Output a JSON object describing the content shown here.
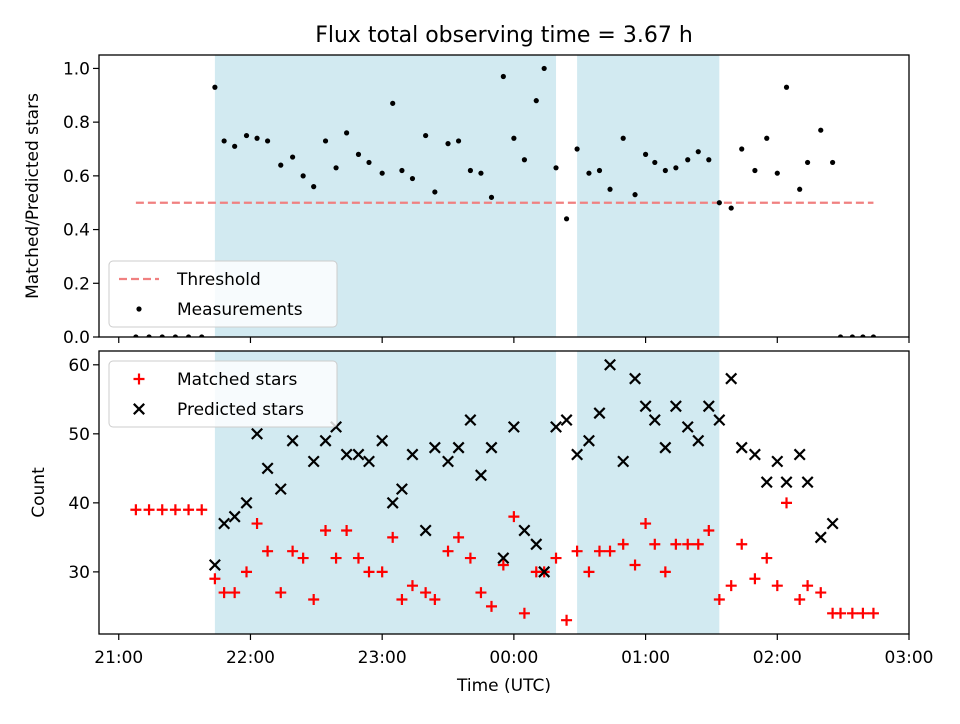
{
  "figure": {
    "title": "Flux total observing time = 3.67 h",
    "xlabel": "Time (UTC)",
    "xticks": [
      "21:00",
      "22:00",
      "23:00",
      "00:00",
      "01:00",
      "02:00",
      "03:00"
    ]
  },
  "colors": {
    "shade": "#add8e6",
    "threshold": "#f08080",
    "measurement": "#000000",
    "matched": "#ff0000",
    "predicted": "#000000"
  },
  "chart_data": [
    {
      "type": "scatter",
      "panel": "top",
      "ylabel": "Matched/Predicted stars",
      "ylim": [
        0,
        1.05
      ],
      "yticks": [
        "0.0",
        "0.2",
        "0.4",
        "0.6",
        "0.8",
        "1.0"
      ],
      "x_unit": "hours after 21:00 UTC",
      "xlim": [
        -0.15,
        6.0
      ],
      "shaded_intervals": [
        [
          0.73,
          3.32
        ],
        [
          3.48,
          4.56
        ]
      ],
      "legend": {
        "position": "lower-left",
        "entries": [
          "Threshold",
          "Measurements"
        ]
      },
      "threshold": {
        "name": "Threshold",
        "y": 0.5,
        "x_range": [
          0.13,
          5.73
        ],
        "style": "dashed"
      },
      "series": [
        {
          "name": "Measurements",
          "x": [
            0.13,
            0.23,
            0.33,
            0.43,
            0.53,
            0.63,
            0.73,
            0.8,
            0.88,
            0.97,
            1.05,
            1.13,
            1.23,
            1.32,
            1.4,
            1.48,
            1.57,
            1.65,
            1.73,
            1.82,
            1.9,
            2.0,
            2.08,
            2.15,
            2.23,
            2.33,
            2.4,
            2.5,
            2.58,
            2.67,
            2.75,
            2.83,
            2.92,
            3.0,
            3.08,
            3.17,
            3.23,
            3.32,
            3.4,
            3.48,
            3.57,
            3.65,
            3.73,
            3.83,
            3.92,
            4.0,
            4.07,
            4.15,
            4.23,
            4.32,
            4.4,
            4.48,
            4.56,
            4.65,
            4.73,
            4.83,
            4.92,
            5.0,
            5.07,
            5.17,
            5.23,
            5.33,
            5.42,
            5.48,
            5.57,
            5.65,
            5.73
          ],
          "y": [
            0.0,
            0.0,
            0.0,
            0.0,
            0.0,
            0.0,
            0.93,
            0.73,
            0.71,
            0.75,
            0.74,
            0.73,
            0.64,
            0.67,
            0.6,
            0.56,
            0.73,
            0.63,
            0.76,
            0.68,
            0.65,
            0.61,
            0.87,
            0.62,
            0.59,
            0.75,
            0.54,
            0.72,
            0.73,
            0.62,
            0.61,
            0.52,
            0.97,
            0.74,
            0.66,
            0.88,
            1.0,
            0.63,
            0.44,
            0.7,
            0.61,
            0.62,
            0.55,
            0.74,
            0.53,
            0.68,
            0.65,
            0.62,
            0.63,
            0.66,
            0.69,
            0.66,
            0.5,
            0.48,
            0.7,
            0.62,
            0.74,
            0.61,
            0.93,
            0.55,
            0.65,
            0.77,
            0.65,
            0.0,
            0.0,
            0.0,
            0.0
          ]
        }
      ]
    },
    {
      "type": "scatter",
      "panel": "bottom",
      "ylabel": "Count",
      "ylim": [
        21,
        62
      ],
      "yticks": [
        "30",
        "40",
        "50",
        "60"
      ],
      "x_unit": "hours after 21:00 UTC",
      "xlim": [
        -0.15,
        6.0
      ],
      "shaded_intervals": [
        [
          0.73,
          3.32
        ],
        [
          3.48,
          4.56
        ]
      ],
      "legend": {
        "position": "top-left",
        "entries": [
          "Matched stars",
          "Predicted stars"
        ]
      },
      "series": [
        {
          "name": "Matched stars",
          "marker": "+",
          "x": [
            0.13,
            0.23,
            0.33,
            0.43,
            0.53,
            0.63,
            0.73,
            0.8,
            0.88,
            0.97,
            1.05,
            1.13,
            1.23,
            1.32,
            1.4,
            1.48,
            1.57,
            1.65,
            1.73,
            1.82,
            1.9,
            2.0,
            2.08,
            2.15,
            2.23,
            2.33,
            2.4,
            2.5,
            2.58,
            2.67,
            2.75,
            2.83,
            2.92,
            3.0,
            3.08,
            3.17,
            3.23,
            3.32,
            3.4,
            3.48,
            3.57,
            3.65,
            3.73,
            3.83,
            3.92,
            4.0,
            4.07,
            4.15,
            4.23,
            4.32,
            4.4,
            4.48,
            4.56,
            4.65,
            4.73,
            4.83,
            4.92,
            5.0,
            5.07,
            5.17,
            5.23,
            5.33,
            5.42,
            5.48,
            5.57,
            5.65,
            5.73
          ],
          "y": [
            39,
            39,
            39,
            39,
            39,
            39,
            29,
            27,
            27,
            30,
            37,
            33,
            27,
            33,
            32,
            26,
            36,
            32,
            36,
            32,
            30,
            30,
            35,
            26,
            28,
            27,
            26,
            33,
            35,
            32,
            27,
            25,
            31,
            38,
            24,
            30,
            30,
            32,
            23,
            33,
            30,
            33,
            33,
            34,
            31,
            37,
            34,
            30,
            34,
            34,
            34,
            36,
            26,
            28,
            34,
            29,
            32,
            28,
            40,
            26,
            28,
            27,
            24,
            24,
            24,
            24,
            24
          ]
        },
        {
          "name": "Predicted stars",
          "marker": "x",
          "x": [
            0.73,
            0.8,
            0.88,
            0.97,
            1.05,
            1.13,
            1.23,
            1.32,
            1.48,
            1.57,
            1.65,
            1.73,
            1.82,
            1.9,
            2.0,
            2.08,
            2.15,
            2.23,
            2.33,
            2.4,
            2.5,
            2.58,
            2.67,
            2.75,
            2.83,
            2.92,
            3.0,
            3.08,
            3.17,
            3.23,
            3.32,
            3.4,
            3.48,
            3.57,
            3.65,
            3.73,
            3.83,
            3.92,
            4.0,
            4.07,
            4.15,
            4.23,
            4.32,
            4.4,
            4.48,
            4.56,
            4.65,
            4.73,
            4.83,
            4.92,
            5.0,
            5.07,
            5.17,
            5.23,
            5.33,
            5.42
          ],
          "y": [
            31,
            37,
            38,
            40,
            50,
            45,
            42,
            49,
            46,
            49,
            51,
            47,
            47,
            46,
            49,
            40,
            42,
            47,
            36,
            48,
            46,
            48,
            52,
            44,
            48,
            32,
            51,
            36,
            34,
            30,
            51,
            52,
            47,
            49,
            53,
            60,
            46,
            58,
            54,
            52,
            48,
            54,
            51,
            49,
            54,
            52,
            58,
            48,
            47,
            43,
            46,
            43,
            47,
            43,
            35,
            37
          ]
        }
      ]
    }
  ]
}
